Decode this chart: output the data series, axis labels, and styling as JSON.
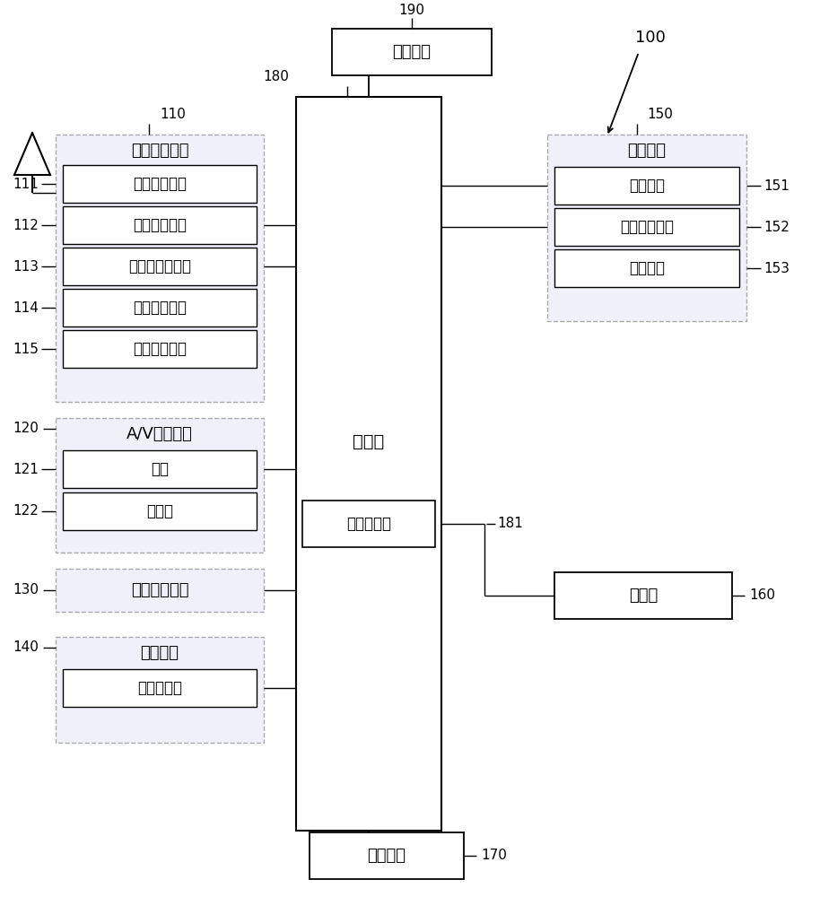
{
  "bg_color": "#ffffff",
  "text_color": "#000000",
  "solid_edge": "#000000",
  "dashed_edge": "#aaaaaa",
  "dashed_fill": "#f0f0fa",
  "solid_fill": "#ffffff",
  "line_color": "#000000",
  "controller_text": "控制器",
  "power_text": "电源单元",
  "multimedia_text": "多媒体模块",
  "interface_text": "接口单元",
  "storage_text": "存储器",
  "wireless_outer_text": "无线通信单元",
  "wireless_modules": [
    "广播接收模块",
    "移动通信模块",
    "无线互联网模块",
    "短程通信模块",
    "位置信息模块"
  ],
  "wireless_labels": [
    "111",
    "112",
    "113",
    "114",
    "115"
  ],
  "av_outer_text": "A/V输入单元",
  "av_modules": [
    "相机",
    "麦克风"
  ],
  "av_labels": [
    "121",
    "122"
  ],
  "user_input_text": "用户输入单元",
  "sensing_outer_text": "感测单元",
  "sensing_modules": [
    "接近传感器"
  ],
  "output_outer_text": "输出单元",
  "output_modules": [
    "显示单元",
    "音频输出模块",
    "警报单元"
  ],
  "output_labels": [
    "151",
    "152",
    "153"
  ],
  "ref_100": "100",
  "ref_110": "110",
  "ref_120": "120",
  "ref_130": "130",
  "ref_140": "140",
  "ref_150": "150",
  "ref_160": "160",
  "ref_170": "170",
  "ref_180": "180",
  "ref_181": "181",
  "ref_190": "190"
}
